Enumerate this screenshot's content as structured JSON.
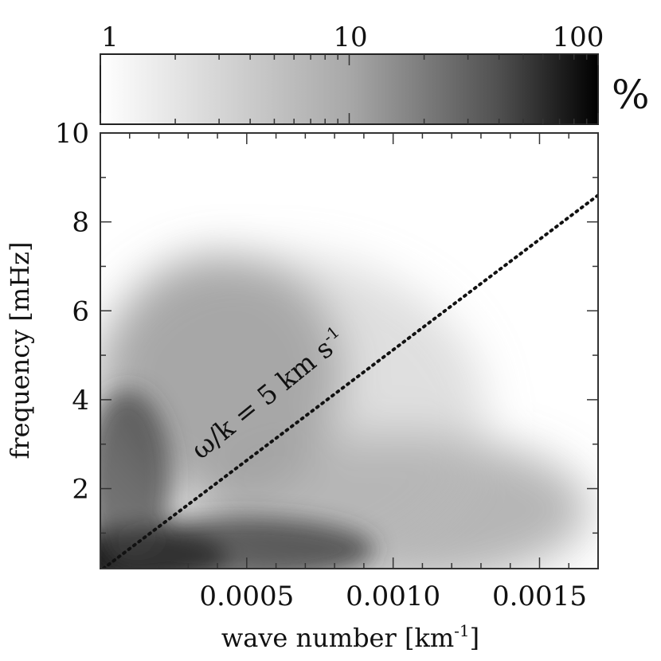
{
  "chart_data": {
    "type": "heatmap",
    "xlabel": "wave number [km",
    "xlabel_sup": "-1",
    "xlabel_end": "]",
    "ylabel": "frequency [mHz]",
    "xlim": [
      0.0,
      0.0017
    ],
    "ylim": [
      0.2,
      10
    ],
    "x_ticks": [
      0.0005,
      0.001,
      0.0015
    ],
    "x_tick_labels": [
      "0.0005",
      "0.0010",
      "0.0015"
    ],
    "y_ticks": [
      2,
      4,
      6,
      8,
      10
    ],
    "y_tick_labels": [
      "2",
      "4",
      "6",
      "8",
      "10"
    ],
    "colorbar": {
      "scale": "log",
      "range": [
        1,
        100
      ],
      "tick_values": [
        1,
        10,
        100
      ],
      "tick_labels": [
        "1",
        "10",
        "100"
      ],
      "unit": "%",
      "colormap": "white-to-black"
    },
    "annotation": {
      "text_main": "ω/k = 5 km s",
      "text_sup": "-1",
      "line_style": "dotted",
      "phase_speed_km_s": 5,
      "line_points": [
        [
          1e-05,
          0.2
        ],
        [
          0.0017,
          8.6
        ]
      ]
    },
    "distribution_peaks": [
      {
        "x": 0.0001,
        "y": 0.3,
        "percent": 100
      },
      {
        "x": 0.0003,
        "y": 4.5,
        "percent": 12
      },
      {
        "x": 0.0011,
        "y": 1.5,
        "percent": 8
      }
    ]
  }
}
